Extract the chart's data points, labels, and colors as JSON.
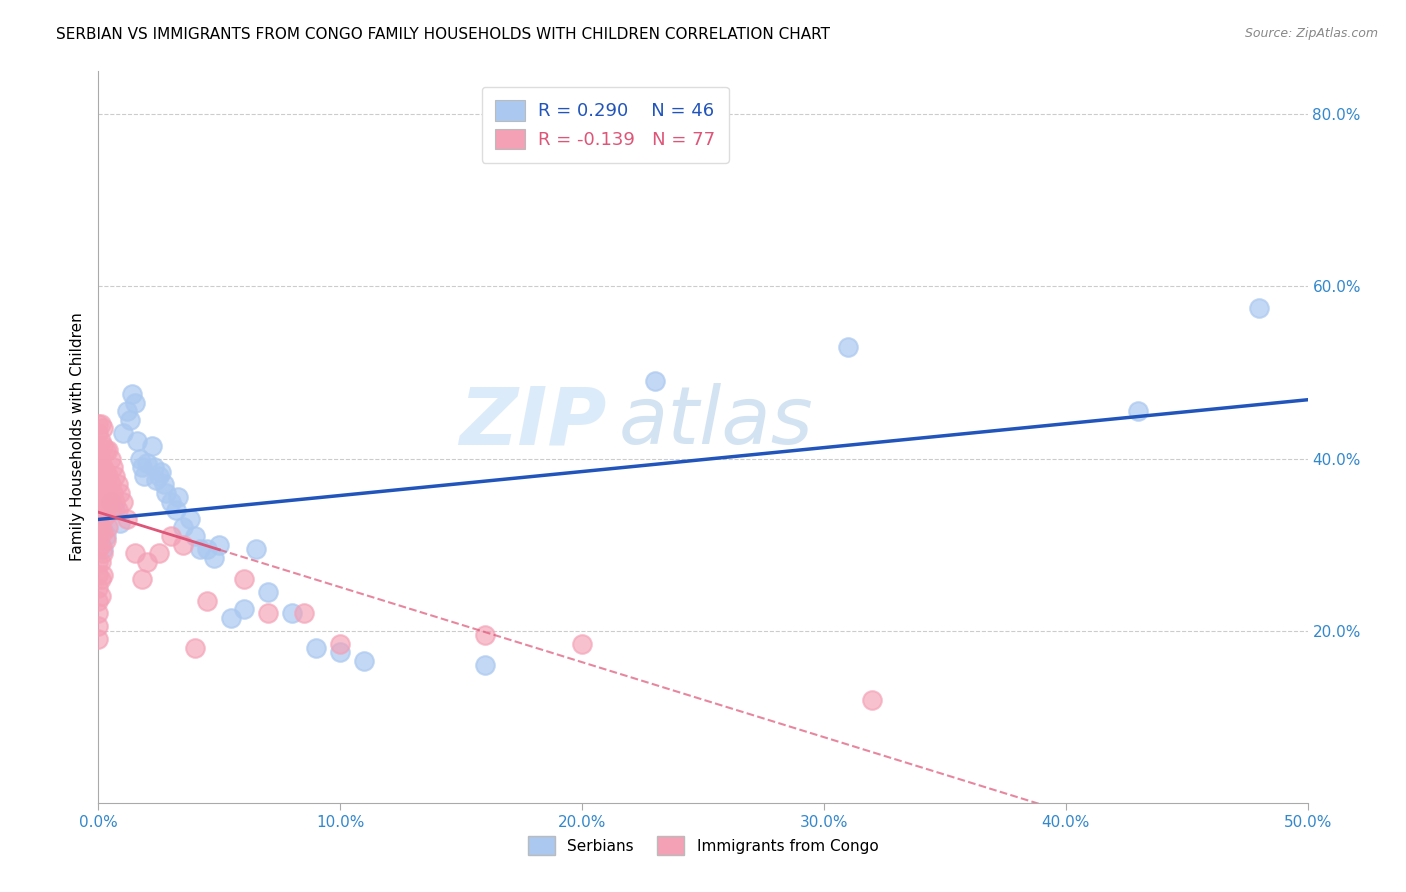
{
  "title": "SERBIAN VS IMMIGRANTS FROM CONGO FAMILY HOUSEHOLDS WITH CHILDREN CORRELATION CHART",
  "source": "Source: ZipAtlas.com",
  "ylabel": "Family Households with Children",
  "xlim": [
    0.0,
    0.5
  ],
  "ylim": [
    0.0,
    0.85
  ],
  "xticks": [
    0.0,
    0.1,
    0.2,
    0.3,
    0.4,
    0.5
  ],
  "xtick_labels": [
    "0.0%",
    "10.0%",
    "20.0%",
    "30.0%",
    "40.0%",
    "50.0%"
  ],
  "yticks_right": [
    0.2,
    0.4,
    0.6,
    0.8
  ],
  "ytick_labels_right": [
    "20.0%",
    "40.0%",
    "60.0%",
    "80.0%"
  ],
  "serbian_color": "#aac8f0",
  "congo_color": "#f4a0b5",
  "trendline_serbian_color": "#2255bb",
  "trendline_congo_color": "#dd5577",
  "watermark_zip": "ZIP",
  "watermark_atlas": "atlas",
  "serbian_points": [
    [
      0.001,
      0.32
    ],
    [
      0.002,
      0.295
    ],
    [
      0.003,
      0.31
    ],
    [
      0.005,
      0.35
    ],
    [
      0.007,
      0.34
    ],
    [
      0.009,
      0.325
    ],
    [
      0.01,
      0.43
    ],
    [
      0.012,
      0.455
    ],
    [
      0.013,
      0.445
    ],
    [
      0.014,
      0.475
    ],
    [
      0.015,
      0.465
    ],
    [
      0.016,
      0.42
    ],
    [
      0.017,
      0.4
    ],
    [
      0.018,
      0.39
    ],
    [
      0.019,
      0.38
    ],
    [
      0.02,
      0.395
    ],
    [
      0.022,
      0.415
    ],
    [
      0.023,
      0.39
    ],
    [
      0.024,
      0.375
    ],
    [
      0.025,
      0.38
    ],
    [
      0.026,
      0.385
    ],
    [
      0.027,
      0.37
    ],
    [
      0.028,
      0.36
    ],
    [
      0.03,
      0.35
    ],
    [
      0.032,
      0.34
    ],
    [
      0.033,
      0.355
    ],
    [
      0.035,
      0.32
    ],
    [
      0.038,
      0.33
    ],
    [
      0.04,
      0.31
    ],
    [
      0.042,
      0.295
    ],
    [
      0.045,
      0.295
    ],
    [
      0.048,
      0.285
    ],
    [
      0.05,
      0.3
    ],
    [
      0.055,
      0.215
    ],
    [
      0.06,
      0.225
    ],
    [
      0.065,
      0.295
    ],
    [
      0.07,
      0.245
    ],
    [
      0.08,
      0.22
    ],
    [
      0.09,
      0.18
    ],
    [
      0.1,
      0.175
    ],
    [
      0.11,
      0.165
    ],
    [
      0.16,
      0.16
    ],
    [
      0.23,
      0.49
    ],
    [
      0.31,
      0.53
    ],
    [
      0.43,
      0.455
    ],
    [
      0.48,
      0.575
    ]
  ],
  "congo_points": [
    [
      0.0,
      0.44
    ],
    [
      0.0,
      0.43
    ],
    [
      0.0,
      0.415
    ],
    [
      0.0,
      0.405
    ],
    [
      0.0,
      0.395
    ],
    [
      0.0,
      0.385
    ],
    [
      0.0,
      0.375
    ],
    [
      0.0,
      0.365
    ],
    [
      0.0,
      0.355
    ],
    [
      0.0,
      0.345
    ],
    [
      0.0,
      0.335
    ],
    [
      0.0,
      0.325
    ],
    [
      0.0,
      0.315
    ],
    [
      0.0,
      0.305
    ],
    [
      0.0,
      0.295
    ],
    [
      0.0,
      0.28
    ],
    [
      0.0,
      0.265
    ],
    [
      0.0,
      0.25
    ],
    [
      0.0,
      0.235
    ],
    [
      0.0,
      0.22
    ],
    [
      0.0,
      0.205
    ],
    [
      0.0,
      0.19
    ],
    [
      0.001,
      0.44
    ],
    [
      0.001,
      0.42
    ],
    [
      0.001,
      0.4
    ],
    [
      0.001,
      0.38
    ],
    [
      0.001,
      0.36
    ],
    [
      0.001,
      0.34
    ],
    [
      0.001,
      0.32
    ],
    [
      0.001,
      0.3
    ],
    [
      0.001,
      0.28
    ],
    [
      0.001,
      0.26
    ],
    [
      0.001,
      0.24
    ],
    [
      0.002,
      0.435
    ],
    [
      0.002,
      0.415
    ],
    [
      0.002,
      0.39
    ],
    [
      0.002,
      0.365
    ],
    [
      0.002,
      0.34
    ],
    [
      0.002,
      0.315
    ],
    [
      0.002,
      0.29
    ],
    [
      0.002,
      0.265
    ],
    [
      0.003,
      0.41
    ],
    [
      0.003,
      0.385
    ],
    [
      0.003,
      0.36
    ],
    [
      0.003,
      0.335
    ],
    [
      0.003,
      0.305
    ],
    [
      0.004,
      0.41
    ],
    [
      0.004,
      0.38
    ],
    [
      0.004,
      0.35
    ],
    [
      0.004,
      0.32
    ],
    [
      0.005,
      0.4
    ],
    [
      0.005,
      0.37
    ],
    [
      0.005,
      0.34
    ],
    [
      0.006,
      0.39
    ],
    [
      0.006,
      0.36
    ],
    [
      0.007,
      0.38
    ],
    [
      0.007,
      0.35
    ],
    [
      0.008,
      0.37
    ],
    [
      0.008,
      0.34
    ],
    [
      0.009,
      0.36
    ],
    [
      0.01,
      0.35
    ],
    [
      0.012,
      0.33
    ],
    [
      0.015,
      0.29
    ],
    [
      0.018,
      0.26
    ],
    [
      0.02,
      0.28
    ],
    [
      0.025,
      0.29
    ],
    [
      0.03,
      0.31
    ],
    [
      0.035,
      0.3
    ],
    [
      0.04,
      0.18
    ],
    [
      0.045,
      0.235
    ],
    [
      0.06,
      0.26
    ],
    [
      0.07,
      0.22
    ],
    [
      0.085,
      0.22
    ],
    [
      0.1,
      0.185
    ],
    [
      0.16,
      0.195
    ],
    [
      0.2,
      0.185
    ],
    [
      0.32,
      0.12
    ]
  ]
}
